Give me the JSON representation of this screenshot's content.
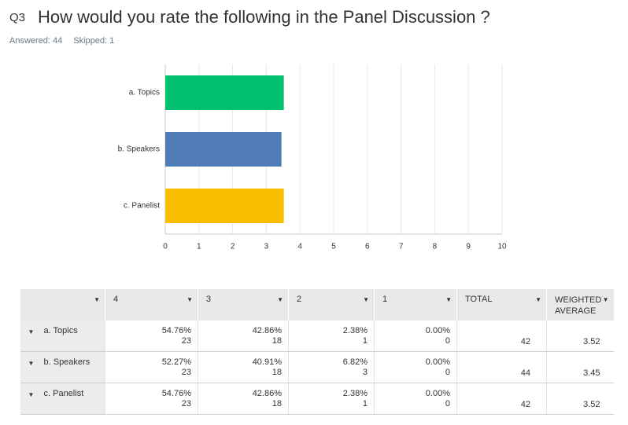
{
  "header": {
    "number": "Q3",
    "title": "How would you rate the following in the Panel Discussion ?",
    "answered": "Answered: 44",
    "skipped": "Skipped: 1"
  },
  "chart_data": {
    "type": "bar",
    "orientation": "horizontal",
    "categories": [
      "a. Topics",
      "b. Speakers",
      "c. Panelist"
    ],
    "values": [
      3.52,
      3.45,
      3.52
    ],
    "colors": [
      "#00bf6f",
      "#507cb6",
      "#f9be00"
    ],
    "xlim": [
      0,
      10
    ],
    "xticks": [
      0,
      1,
      2,
      3,
      4,
      5,
      6,
      7,
      8,
      9,
      10
    ],
    "grid": true
  },
  "table": {
    "columns": [
      "",
      "4",
      "3",
      "2",
      "1",
      "TOTAL",
      "WEIGHTED AVERAGE"
    ],
    "rows": [
      {
        "label": "a. Topics",
        "cells": [
          [
            "54.76%",
            "23"
          ],
          [
            "42.86%",
            "18"
          ],
          [
            "2.38%",
            "1"
          ],
          [
            "0.00%",
            "0"
          ]
        ],
        "total": "42",
        "average": "3.52"
      },
      {
        "label": "b. Speakers",
        "cells": [
          [
            "52.27%",
            "23"
          ],
          [
            "40.91%",
            "18"
          ],
          [
            "6.82%",
            "3"
          ],
          [
            "0.00%",
            "0"
          ]
        ],
        "total": "44",
        "average": "3.45"
      },
      {
        "label": "c. Panelist",
        "cells": [
          [
            "54.76%",
            "23"
          ],
          [
            "42.86%",
            "18"
          ],
          [
            "2.38%",
            "1"
          ],
          [
            "0.00%",
            "0"
          ]
        ],
        "total": "42",
        "average": "3.52"
      }
    ]
  }
}
